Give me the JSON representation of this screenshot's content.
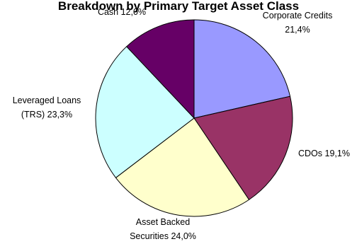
{
  "chart_data": {
    "type": "pie",
    "title": "Breakdown by Primary Target Asset Class",
    "start_angle_deg": 0,
    "direction": "clockwise",
    "slices": [
      {
        "label_lines": [
          "Corporate Credits",
          "21,4%"
        ],
        "category": "Corporate Credits",
        "value": 21.4,
        "color": "#9999ff"
      },
      {
        "label_lines": [
          "CDOs 19,1%"
        ],
        "category": "CDOs",
        "value": 19.1,
        "color": "#993366"
      },
      {
        "label_lines": [
          "Asset Backed",
          "Securities 24,0%"
        ],
        "category": "Asset Backed Securities",
        "value": 24.0,
        "color": "#ffffcc"
      },
      {
        "label_lines": [
          "Leveraged Loans",
          "(TRS) 23,3%"
        ],
        "category": "Leveraged Loans (TRS)",
        "value": 23.3,
        "color": "#ccffff"
      },
      {
        "label_lines": [
          "Cash 12,0%"
        ],
        "category": "Cash",
        "value": 12.0,
        "color": "#660066"
      }
    ]
  }
}
